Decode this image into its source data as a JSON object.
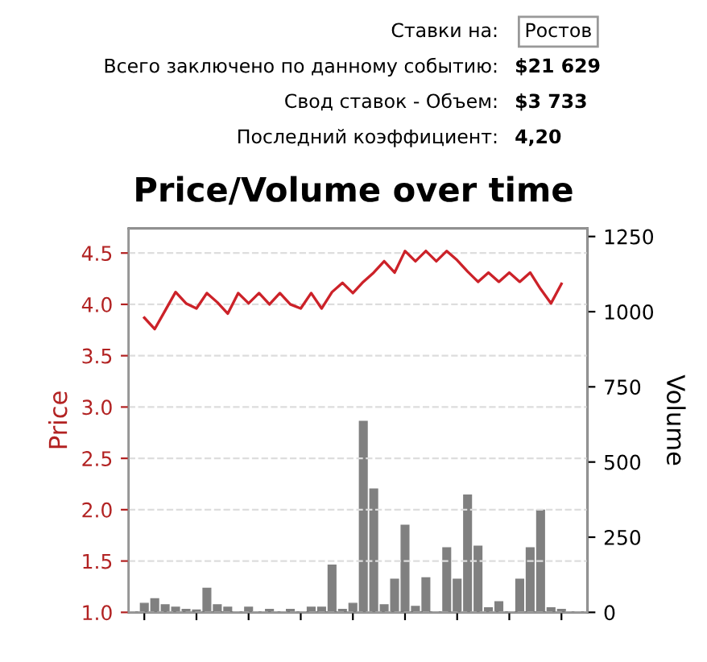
{
  "chart_data": {
    "type": "bar",
    "title": "Price/Volume over time",
    "ylabel": "Price",
    "y2label": "Volume",
    "annotations": [
      "Ставки на:",
      "Ростов",
      "Всего заключено по данному событию:",
      "$21 629",
      "Свод ставок - Объем:",
      "$3 733",
      "Последний коэффициент:",
      "4,20"
    ],
    "categories": [
      null,
      null,
      null,
      null,
      null,
      null,
      null,
      null,
      null,
      null,
      null,
      null,
      null,
      null,
      null,
      null,
      null,
      null,
      null,
      null,
      null,
      null,
      null,
      null,
      null,
      null,
      null,
      null,
      null,
      null,
      null,
      null,
      null,
      null,
      null,
      null,
      null,
      null,
      null,
      null,
      null
    ],
    "series": [
      {
        "type": "line",
        "color": "#cc2229",
        "values": [
          3.87,
          3.76,
          3.94,
          4.12,
          4.01,
          3.96,
          4.11,
          4.02,
          3.91,
          4.11,
          4.01,
          4.11,
          4.0,
          4.11,
          4.0,
          3.96,
          4.11,
          3.96,
          4.12,
          4.21,
          4.11,
          4.22,
          4.31,
          4.42,
          4.31,
          4.52,
          4.42,
          4.52,
          4.42,
          4.52,
          4.43,
          4.32,
          4.22,
          4.31,
          4.22,
          4.31,
          4.22,
          4.31,
          4.15,
          4.01,
          4.2
        ]
      },
      {
        "axis": "y2",
        "color": "#808080",
        "values": [
          30,
          45,
          25,
          17,
          10,
          8,
          80,
          25,
          17,
          0,
          17,
          0,
          10,
          0,
          10,
          0,
          17,
          17,
          157,
          10,
          30,
          635,
          410,
          25,
          110,
          290,
          20,
          115,
          0,
          215,
          110,
          390,
          220,
          15,
          35,
          0,
          110,
          215,
          340,
          15,
          10
        ]
      }
    ],
    "ylim": [
      1.0,
      4.74
    ],
    "yticks": [
      {
        "value": 1,
        "label": "1.0"
      },
      1.5,
      {
        "value": 2,
        "label": "2.0"
      },
      2.5,
      {
        "value": 3,
        "label": "3.0"
      },
      3.5,
      {
        "value": 4,
        "label": "4.0"
      },
      4.5
    ],
    "y2lim": [
      0,
      1277
    ],
    "y2ticks": [
      0,
      250,
      500,
      750,
      1000,
      1250
    ],
    "grid": "y",
    "tick_labels": "y"
  }
}
